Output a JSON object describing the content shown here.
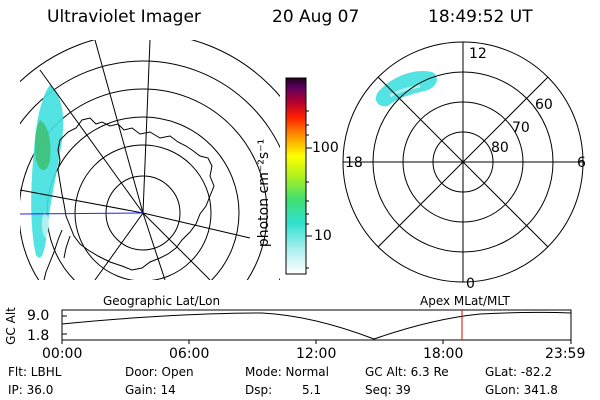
{
  "header": {
    "title": "Ultraviolet Imager",
    "date": "20 Aug 07",
    "time": "18:49:52 UT"
  },
  "colorbar": {
    "unit_label": "photon cm⁻²s⁻¹",
    "ticks": [
      "100",
      "10"
    ],
    "scale": "log"
  },
  "polar_plot": {
    "mlt_labels": {
      "top": "12",
      "left": "18",
      "right": "6",
      "bottom": "0"
    },
    "mlat_labels": [
      "60",
      "70",
      "80"
    ]
  },
  "geo_label": "Geographic Lat/Lon",
  "apex_label": "Apex MLat/MLT",
  "altitude_plot": {
    "ylabel": "GC Alt",
    "y_ticks": [
      "9.0",
      "1.8"
    ],
    "x_ticks": [
      "00:00",
      "06:00",
      "12:00",
      "18:00",
      "23:59"
    ],
    "current_time_color": "#e00000"
  },
  "info": {
    "flt": "Flt: LBHL",
    "ip": "IP: 36.0",
    "door": "Door: Open",
    "gain": "Gain: 14",
    "mode": "Mode: Normal",
    "dsp": "Dsp:",
    "dsp_value": "5.1",
    "gcalt": "GC Alt: 6.3 Re",
    "seq": "Seq: 39",
    "glat": "GLat: -82.2",
    "glon": "GLon: 341.8"
  },
  "colors": {
    "aurora_cyan": "#40e0e0",
    "aurora_green": "#40c070",
    "meridian_blue": "#2020ff"
  }
}
